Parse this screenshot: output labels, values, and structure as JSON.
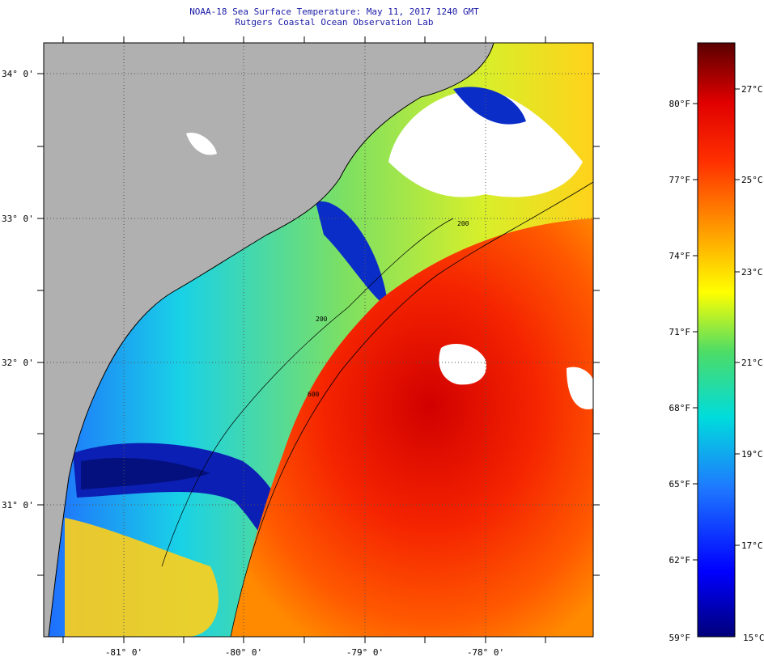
{
  "header": {
    "title": "NOAA-18 Sea Surface Temperature:  May 11, 2017 1240 GMT",
    "subtitle": "Rutgers Coastal Ocean Observation Lab"
  },
  "map": {
    "lat_labels": [
      "34° 0'",
      "33° 0'",
      "32° 0'",
      "31° 0'"
    ],
    "lon_labels": [
      "-81° 0'",
      "-80° 0'",
      "-79° 0'",
      "-78° 0'"
    ],
    "contour_labels": [
      "200",
      "600",
      "200"
    ],
    "colors": {
      "land": "#b0b0b0",
      "cloud": "#ffffff",
      "coast": "#000000"
    }
  },
  "colorbar": {
    "fahrenheit_labels": [
      "80°F",
      "77°F",
      "74°F",
      "71°F",
      "68°F",
      "65°F",
      "62°F",
      "59°F"
    ],
    "celsius_labels": [
      "27°C",
      "25°C",
      "23°C",
      "21°C",
      "19°C",
      "17°C",
      "15°C"
    ],
    "range_c": [
      15,
      28
    ],
    "gradient": [
      "#00007a",
      "#0000ff",
      "#1e78ff",
      "#00dcdc",
      "#4ddc66",
      "#ffff00",
      "#ffa000",
      "#ff3000",
      "#e00000",
      "#5a0000"
    ]
  }
}
